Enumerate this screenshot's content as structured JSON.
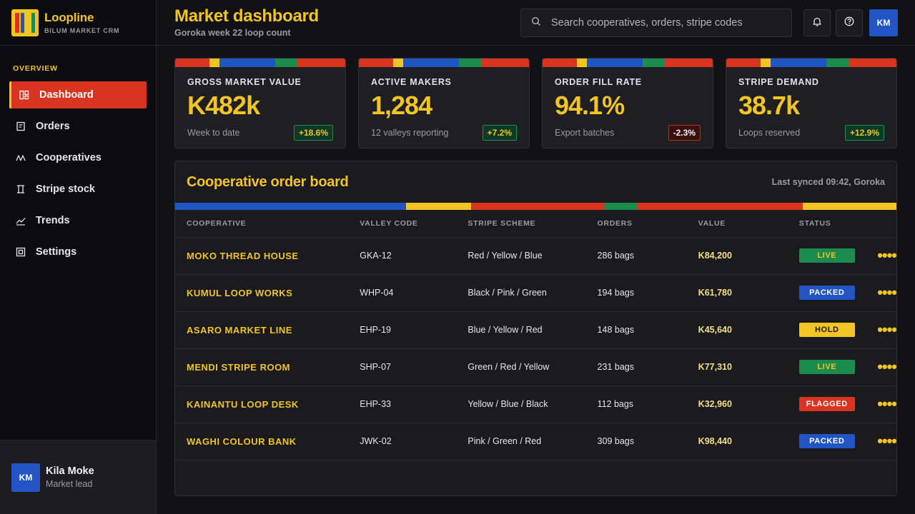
{
  "brand": {
    "name": "Loopline",
    "subtitle": "BILUM MARKET CRM",
    "logo_colors": [
      "#d9341f",
      "#2255c4",
      "#f2c523",
      "#1a8c4e",
      "#d9341f",
      "#2255c4"
    ]
  },
  "sidebar": {
    "section": "OVERVIEW",
    "items": [
      {
        "label": "Dashboard",
        "icon": "dashboard-icon",
        "active": true
      },
      {
        "label": "Orders",
        "icon": "orders-icon"
      },
      {
        "label": "Cooperatives",
        "icon": "cooperatives-icon"
      },
      {
        "label": "Stripe stock",
        "icon": "stripe-stock-icon"
      },
      {
        "label": "Trends",
        "icon": "trends-icon"
      },
      {
        "label": "Settings",
        "icon": "settings-icon"
      }
    ]
  },
  "user": {
    "initials": "KM",
    "name": "Kila Moke",
    "role": "Market lead"
  },
  "header": {
    "title": "Market dashboard",
    "subtitle": "Goroka week 22 loop count",
    "search_placeholder": "Search cooperatives, orders, stripe codes",
    "avatar_initials": "KM"
  },
  "colors": {
    "red": "#d9341f",
    "yellow": "#f2c523",
    "blue": "#2255c4",
    "green": "#1a8c4e"
  },
  "kpis": [
    {
      "label": "GROSS MARKET VALUE",
      "value": "K482k",
      "note": "Week to date",
      "delta": "+18.6%",
      "trend": "up"
    },
    {
      "label": "ACTIVE MAKERS",
      "value": "1,284",
      "note": "12 valleys reporting",
      "delta": "+7.2%",
      "trend": "up"
    },
    {
      "label": "ORDER FILL RATE",
      "value": "94.1%",
      "note": "Export batches",
      "delta": "-2.3%",
      "trend": "down"
    },
    {
      "label": "STRIPE DEMAND",
      "value": "38.7k",
      "note": "Loops reserved",
      "delta": "+12.9%",
      "trend": "up"
    }
  ],
  "board": {
    "title": "Cooperative order board",
    "sync": "Last synced 09:42, Goroka",
    "columns": [
      "COOPERATIVE",
      "VALLEY CODE",
      "STRIPE SCHEME",
      "ORDERS",
      "VALUE",
      "STATUS"
    ],
    "rows": [
      {
        "coop": "MOKO THREAD HOUSE",
        "code": "GKA-12",
        "scheme": "Red / Yellow / Blue",
        "orders": "286 bags",
        "value": "K84,200",
        "status": "LIVE"
      },
      {
        "coop": "KUMUL LOOP WORKS",
        "code": "WHP-04",
        "scheme": "Black / Pink / Green",
        "orders": "194 bags",
        "value": "K61,780",
        "status": "PACKED"
      },
      {
        "coop": "ASARO MARKET LINE",
        "code": "EHP-19",
        "scheme": "Blue / Yellow / Red",
        "orders": "148 bags",
        "value": "K45,640",
        "status": "HOLD"
      },
      {
        "coop": "MENDI STRIPE ROOM",
        "code": "SHP-07",
        "scheme": "Green / Red / Yellow",
        "orders": "231 bags",
        "value": "K77,310",
        "status": "LIVE"
      },
      {
        "coop": "KAINANTU LOOP DESK",
        "code": "EHP-33",
        "scheme": "Yellow / Blue / Black",
        "orders": "112 bags",
        "value": "K32,960",
        "status": "FLAGGED"
      },
      {
        "coop": "WAGHI COLOUR BANK",
        "code": "JWK-02",
        "scheme": "Pink / Green / Red",
        "orders": "309 bags",
        "value": "K98,440",
        "status": "PACKED"
      }
    ]
  },
  "status_colors": {
    "LIVE": {
      "bg": "#1a8c4e",
      "fg": "#f2c523"
    },
    "PACKED": {
      "bg": "#2255c4",
      "fg": "#ffffff"
    },
    "HOLD": {
      "bg": "#f2c523",
      "fg": "#1a1a1f"
    },
    "FLAGGED": {
      "bg": "#d9341f",
      "fg": "#ffffff"
    }
  }
}
